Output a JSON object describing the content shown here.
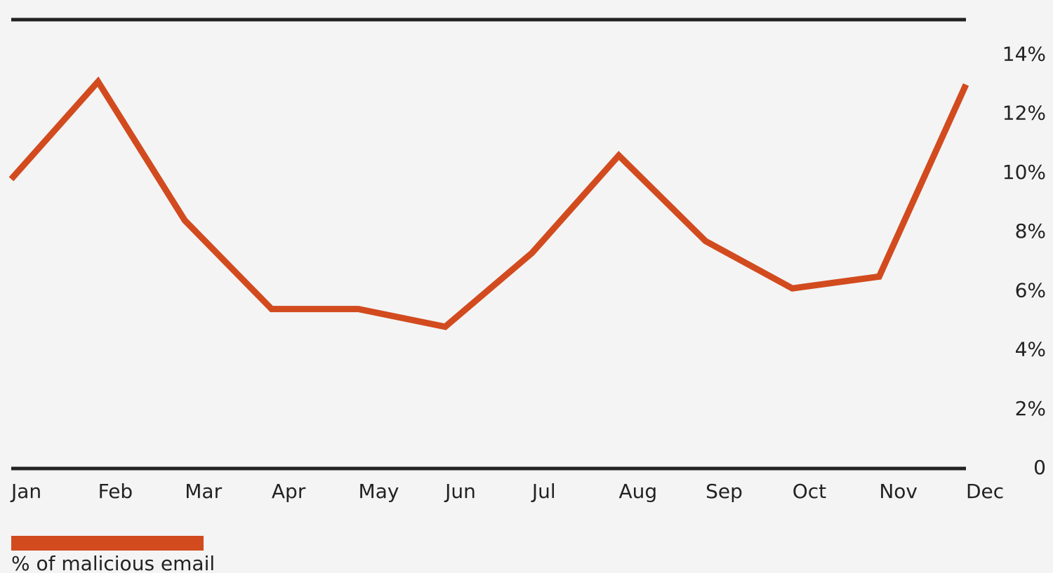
{
  "chart_data": {
    "type": "line",
    "categories": [
      "Jan",
      "Feb",
      "Mar",
      "Apr",
      "May",
      "Jun",
      "Jul",
      "Aug",
      "Sep",
      "Oct",
      "Nov",
      "Dec"
    ],
    "series": [
      {
        "name": "% of malicious email",
        "color": "#d24b1f",
        "values": [
          9.8,
          13.1,
          8.4,
          5.4,
          5.4,
          4.8,
          7.3,
          10.6,
          7.7,
          6.1,
          6.5,
          13.0
        ]
      }
    ],
    "ylim": [
      0,
      15.2
    ],
    "yticks": [
      0,
      {
        "value": 2,
        "label": "2%"
      },
      {
        "value": 4,
        "label": "4%"
      },
      {
        "value": 6,
        "label": "6%"
      },
      {
        "value": 8,
        "label": "8%"
      },
      {
        "value": 10,
        "label": "10%"
      },
      {
        "value": 12,
        "label": "12%"
      },
      {
        "value": 14,
        "label": "14%"
      }
    ],
    "legend": "bottom-left"
  }
}
